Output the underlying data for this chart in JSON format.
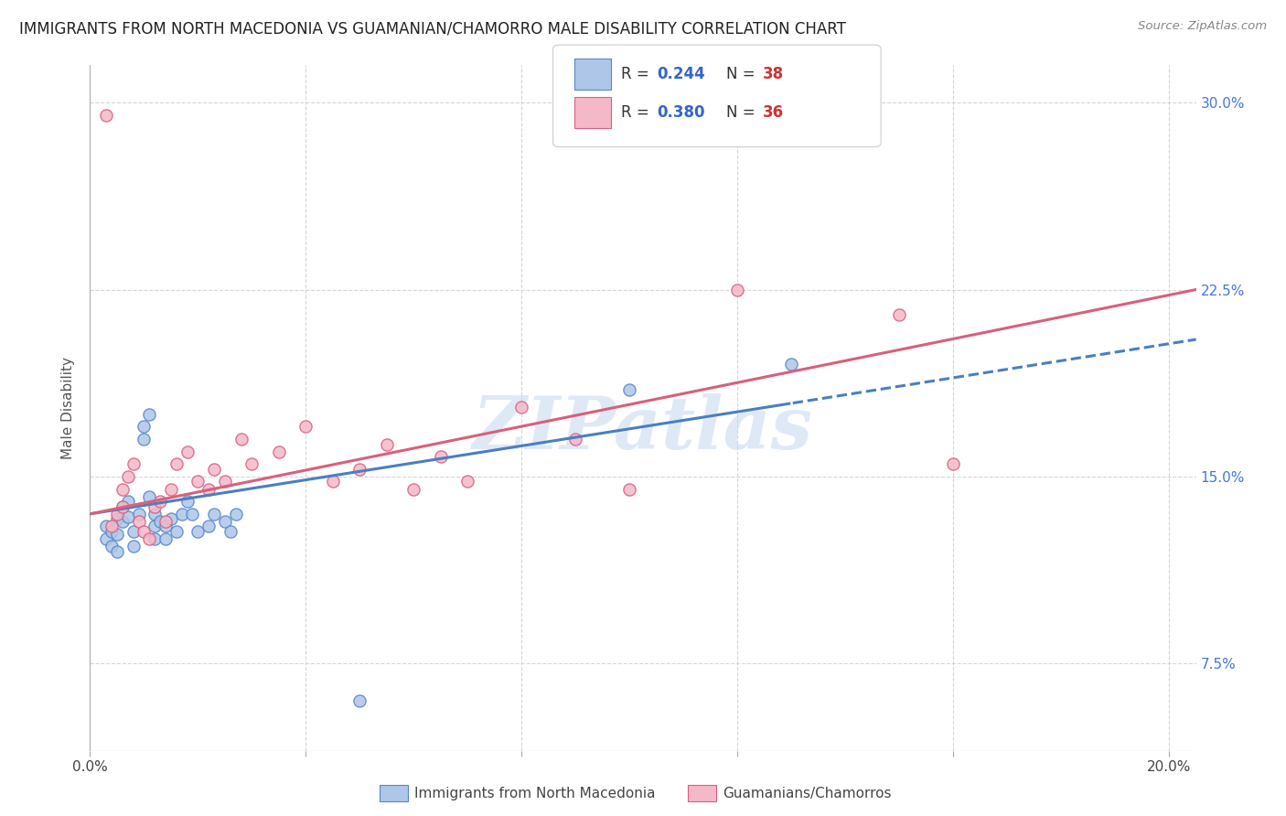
{
  "title": "IMMIGRANTS FROM NORTH MACEDONIA VS GUAMANIAN/CHAMORRO MALE DISABILITY CORRELATION CHART",
  "source": "Source: ZipAtlas.com",
  "ylabel": "Male Disability",
  "watermark": "ZIPatlas",
  "series1": {
    "label": "Immigrants from North Macedonia",
    "color": "#aec6e8",
    "edge_color": "#5588cc",
    "R": 0.244,
    "N": 38
  },
  "series2": {
    "label": "Guamanians/Chamorros",
    "color": "#f4b8c8",
    "edge_color": "#d96080",
    "R": 0.38,
    "N": 36
  },
  "xlim": [
    0.0,
    0.205
  ],
  "ylim": [
    0.04,
    0.315
  ],
  "yticks": [
    0.075,
    0.15,
    0.225,
    0.3
  ],
  "xticks": [
    0.0,
    0.04,
    0.08,
    0.12,
    0.16,
    0.2
  ],
  "line1_color": "#4a7fc1",
  "line2_color": "#d9607a",
  "grid_color": "#cccccc",
  "background_color": "#ffffff",
  "legend_R_color": "#3366cc",
  "legend_N_color": "#cc3333",
  "legend_box1_color": "#aec6e8",
  "legend_box2_color": "#f4b8c8",
  "legend_box1_edge": "#5588cc",
  "legend_box2_edge": "#d96080"
}
